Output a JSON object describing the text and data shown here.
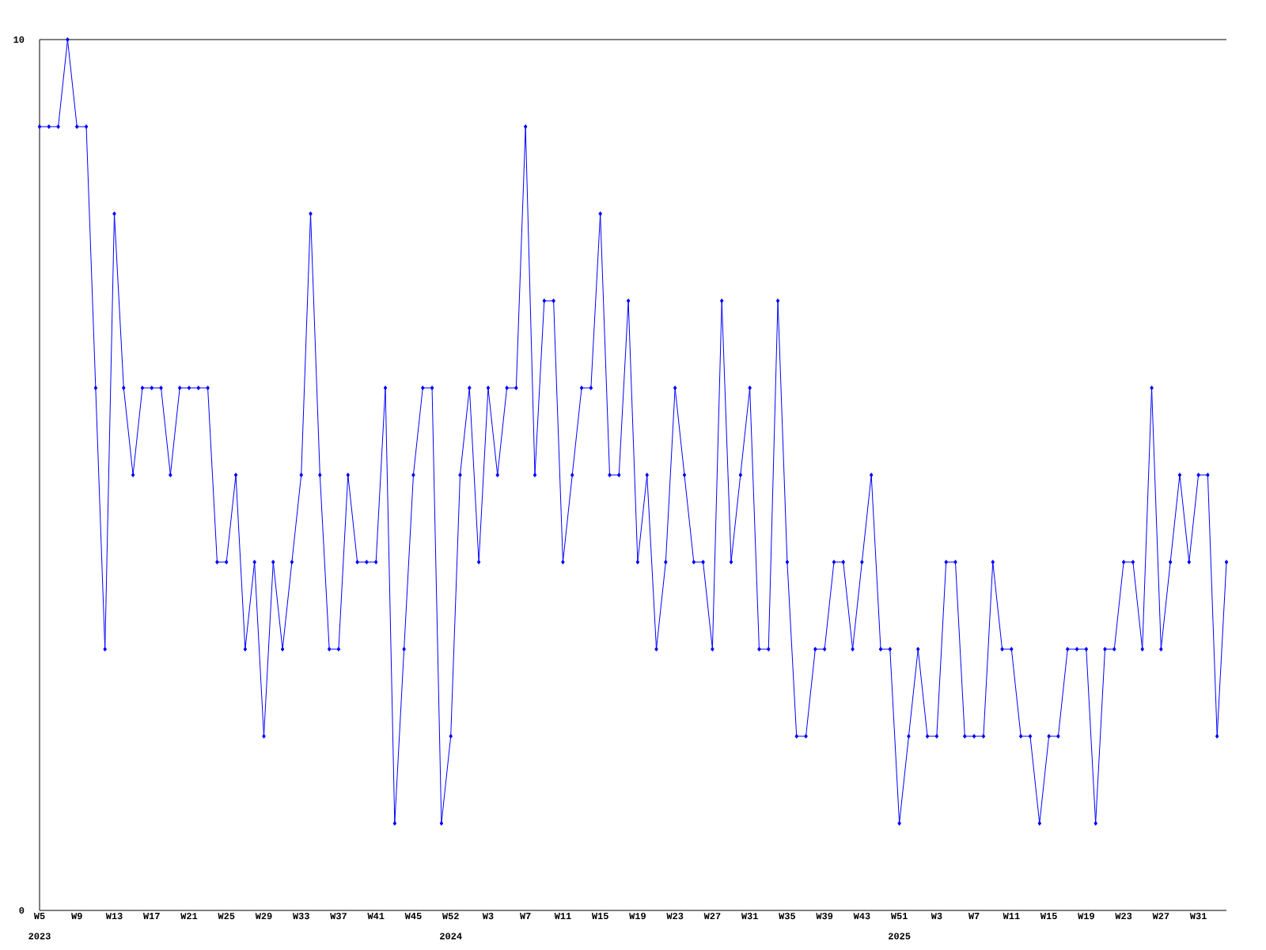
{
  "chart_data": {
    "type": "line",
    "categories": [
      "W5",
      null,
      null,
      null,
      "W9",
      null,
      null,
      null,
      "W13",
      null,
      null,
      null,
      "W17",
      null,
      null,
      null,
      "W21",
      null,
      null,
      null,
      "W25",
      null,
      null,
      null,
      "W29",
      null,
      null,
      null,
      "W33",
      null,
      null,
      null,
      "W37",
      null,
      null,
      null,
      "W41",
      null,
      null,
      null,
      "W45",
      null,
      null,
      null,
      "W52",
      null,
      null,
      null,
      "W3",
      null,
      null,
      null,
      "W7",
      null,
      null,
      null,
      "W11",
      null,
      null,
      null,
      "W15",
      null,
      null,
      null,
      "W19",
      null,
      null,
      null,
      "W23",
      null,
      null,
      null,
      "W27",
      null,
      null,
      null,
      "W31",
      null,
      null,
      null,
      "W35",
      null,
      null,
      null,
      "W39",
      null,
      null,
      null,
      "W43",
      null,
      null,
      null,
      "W51",
      null,
      null,
      null,
      "W3",
      null,
      null,
      null,
      "W7",
      null,
      null,
      null,
      "W11",
      null,
      null,
      null,
      "W15",
      null,
      null,
      null,
      "W19",
      null,
      null,
      null,
      "W23",
      null,
      null,
      null,
      "W27",
      null,
      null,
      null,
      "W31",
      null,
      null,
      null
    ],
    "values": [
      9,
      9,
      9,
      10,
      9,
      9,
      6,
      3,
      8,
      6,
      5,
      6,
      6,
      6,
      5,
      6,
      6,
      6,
      6,
      4,
      4,
      5,
      3,
      4,
      2,
      4,
      3,
      4,
      5,
      8,
      5,
      3,
      3,
      5,
      4,
      4,
      4,
      6,
      1,
      3,
      5,
      6,
      6,
      1,
      2,
      5,
      6,
      4,
      6,
      5,
      6,
      6,
      9,
      5,
      7,
      7,
      4,
      5,
      6,
      6,
      8,
      5,
      5,
      7,
      4,
      5,
      3,
      4,
      6,
      5,
      4,
      4,
      3,
      7,
      4,
      5,
      6,
      3,
      3,
      7,
      4,
      2,
      2,
      3,
      3,
      4,
      4,
      3,
      4,
      5,
      3,
      3,
      1,
      2,
      3,
      2,
      2,
      4,
      4,
      2,
      2,
      2,
      4,
      3,
      3,
      2,
      2,
      1,
      2,
      2,
      3,
      3,
      3,
      1,
      3,
      3,
      4,
      4,
      3,
      6,
      3,
      4,
      5,
      4,
      5,
      5,
      2,
      4
    ],
    "color": "#0000ff",
    "marker": "diamond",
    "ylim": [
      0,
      10
    ],
    "yticks": [
      0,
      10
    ],
    "annotations": [
      "2023",
      "2024",
      "2025"
    ]
  }
}
